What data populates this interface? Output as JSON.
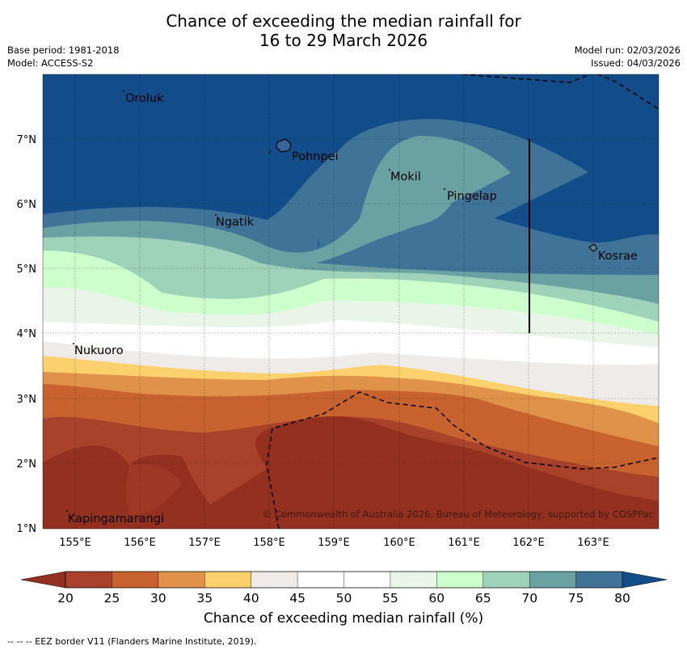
{
  "title": {
    "line1": "Chance of exceeding the median rainfall for",
    "line2": "16 to 29 March 2026"
  },
  "header_left": {
    "base_period": "Base period: 1981-2018",
    "model": "Model: ACCESS-S2"
  },
  "header_right": {
    "model_run": "Model run: 02/03/2026",
    "issued": "Issued: 04/03/2026"
  },
  "map": {
    "lat_ticks": [
      "7°N",
      "6°N",
      "5°N",
      "4°N",
      "3°N",
      "2°N",
      "1°N"
    ],
    "lon_ticks": [
      "155°E",
      "156°E",
      "157°E",
      "158°E",
      "159°E",
      "160°E",
      "161°E",
      "162°E",
      "163°E"
    ],
    "places": [
      {
        "name": "Oroluk"
      },
      {
        "name": "Pohnpei"
      },
      {
        "name": "Mokil"
      },
      {
        "name": "Pingelap"
      },
      {
        "name": "Ngatik"
      },
      {
        "name": "Kosrae"
      },
      {
        "name": "Nukuoro"
      },
      {
        "name": "Kapingamarangi"
      }
    ],
    "copyright": "© Commonwealth of Australia 2026, Bureau of Meteorology, supported by COSPPac"
  },
  "legend": {
    "tick_labels": [
      "20",
      "25",
      "30",
      "35",
      "40",
      "45",
      "50",
      "55",
      "60",
      "65",
      "70",
      "75",
      "80"
    ],
    "colors": [
      "#a8422a",
      "#c8632f",
      "#e0924a",
      "#fdd06e",
      "#eeebe8",
      "#ffffff",
      "#ffffff",
      "#e8f5e8",
      "#ccffcc",
      "#9ed2b9",
      "#6aa2a4",
      "#3f7498"
    ],
    "low_color": "#93301f",
    "high_color": "#124d8a",
    "label": "Chance of exceeding median rainfall (%)"
  },
  "footnote": "--  --  -- EEZ border V11 (Flanders Marine Institute, 2019)."
}
